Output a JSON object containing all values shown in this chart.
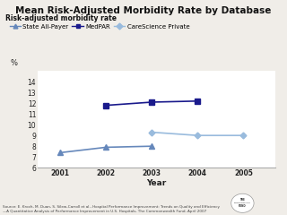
{
  "title": "Mean Risk-Adjusted Morbidity Rate by Database",
  "ylabel_top": "Risk-adjusted morbidity rate",
  "ylabel_pct": "%",
  "xlabel": "Year",
  "years": [
    2001,
    2002,
    2003,
    2004,
    2005
  ],
  "series": [
    {
      "name": "State All-Payer",
      "values": [
        7.4,
        7.9,
        8.0,
        null,
        null
      ],
      "color": "#6688bb",
      "marker": "^",
      "linewidth": 1.2,
      "markersize": 4,
      "linestyle": "-"
    },
    {
      "name": "MedPAR",
      "values": [
        null,
        11.8,
        12.1,
        12.2,
        null
      ],
      "color": "#1a1a8c",
      "marker": "s",
      "linewidth": 1.2,
      "markersize": 4,
      "linestyle": "-"
    },
    {
      "name": "CareScience Private",
      "values": [
        null,
        null,
        9.3,
        9.0,
        9.0
      ],
      "color": "#99bbdd",
      "marker": "D",
      "linewidth": 1.2,
      "markersize": 3.5,
      "linestyle": "-"
    }
  ],
  "ylim": [
    6,
    15
  ],
  "yticks": [
    6,
    7,
    8,
    9,
    10,
    11,
    12,
    13,
    14
  ],
  "source_text": "Source: E. Kroch, M. Duan, S. Silew-Carroll et al., Hospital Performance Improvement: Trends on Quality and Efficiency\n—A Quantitative Analysis of Performance Improvement in U.S. Hospitals, The Commonwealth Fund, April 2007",
  "background_color": "#f0ede8",
  "plot_bg_color": "#ffffff"
}
